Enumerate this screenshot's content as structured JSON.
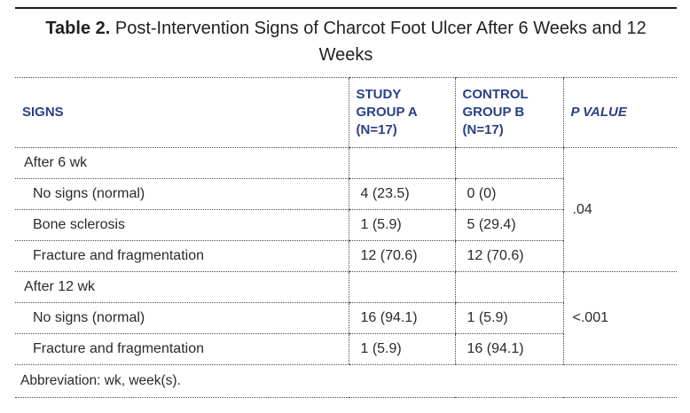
{
  "title": {
    "label": "Table 2.",
    "text": " Post-Intervention Signs of Charcot Foot Ulcer After 6 Weeks and 12 Weeks"
  },
  "header": {
    "signs": "SIGNS",
    "study": "STUDY GROUP A (N=17)",
    "control": "CONTROL GROUP B (N=17)",
    "p_value": "P VALUE"
  },
  "sections": [
    {
      "header": "After 6 wk",
      "p_value": ".04",
      "rows": [
        {
          "sign": "No signs (normal)",
          "study": "4 (23.5)",
          "control": "0 (0)"
        },
        {
          "sign": "Bone sclerosis",
          "study": "1 (5.9)",
          "control": "5 (29.4)"
        },
        {
          "sign": "Fracture and fragmentation",
          "study": "12 (70.6)",
          "control": "12 (70.6)"
        }
      ]
    },
    {
      "header": "After 12 wk",
      "p_value": "<.001",
      "rows": [
        {
          "sign": "No signs (normal)",
          "study": "16 (94.1)",
          "control": "1 (5.9)"
        },
        {
          "sign": "Fracture and fragmentation",
          "study": "1 (5.9)",
          "control": "16 (94.1)"
        }
      ]
    }
  ],
  "footnote": "Abbreviation: wk, week(s).",
  "colors": {
    "header_text": "#2b3f87",
    "body_text": "#2a2a2a",
    "rule_solid": "#1c1c1c",
    "rule_dotted": "#4a4a4a",
    "background": "#ffffff"
  }
}
